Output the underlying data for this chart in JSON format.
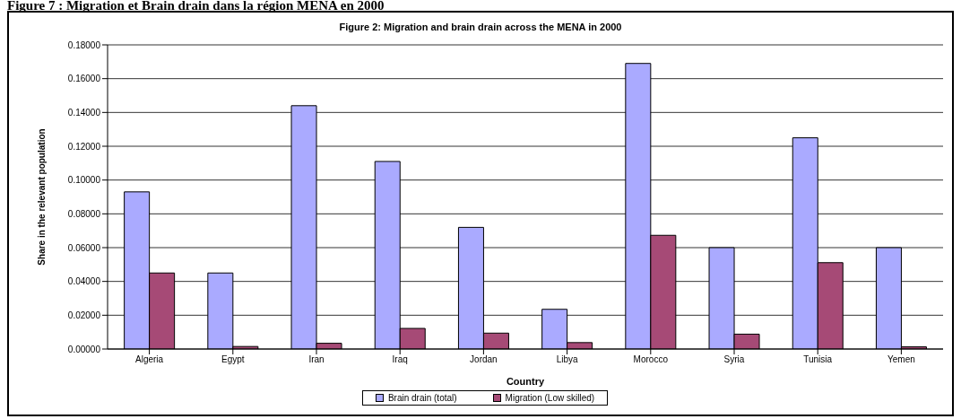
{
  "chart_data": {
    "type": "bar",
    "title": "Figure 2: Migration and brain drain across the MENA in 2000",
    "xlabel": "Country",
    "ylabel": "Share in the relevant population",
    "annotations": [
      "Figure 7 : Migration et Brain drain dans la région MENA en 2000"
    ],
    "categories": [
      "Algeria",
      "Egypt",
      "Iran",
      "Iraq",
      "Jordan",
      "Libya",
      "Morocco",
      "Syria",
      "Tunisia",
      "Yemen"
    ],
    "series": [
      {
        "name": "Brain drain (total)",
        "color": "#aaaaff",
        "values": [
          0.093,
          0.045,
          0.144,
          0.111,
          0.072,
          0.0235,
          0.169,
          0.06,
          0.125,
          0.06
        ]
      },
      {
        "name": "Migration (Low skilled)",
        "color": "#a64a76",
        "values": [
          0.045,
          0.0015,
          0.0034,
          0.0122,
          0.0094,
          0.0038,
          0.0673,
          0.0088,
          0.0511,
          0.0013
        ]
      }
    ],
    "ylim": [
      0,
      0.18
    ],
    "yticks": [
      {
        "value": 0,
        "label": "0.00000"
      },
      {
        "value": 0.02,
        "label": "0.02000"
      },
      {
        "value": 0.04,
        "label": "0.04000"
      },
      {
        "value": 0.06,
        "label": "0.06000"
      },
      {
        "value": 0.08,
        "label": "0.08000"
      },
      {
        "value": 0.1,
        "label": "0.10000"
      },
      {
        "value": 0.12,
        "label": "0.12000"
      },
      {
        "value": 0.14,
        "label": "0.14000"
      },
      {
        "value": 0.16,
        "label": "0.16000"
      },
      {
        "value": 0.18,
        "label": "0.18000"
      }
    ],
    "grid": "y",
    "legend": "bottom"
  }
}
